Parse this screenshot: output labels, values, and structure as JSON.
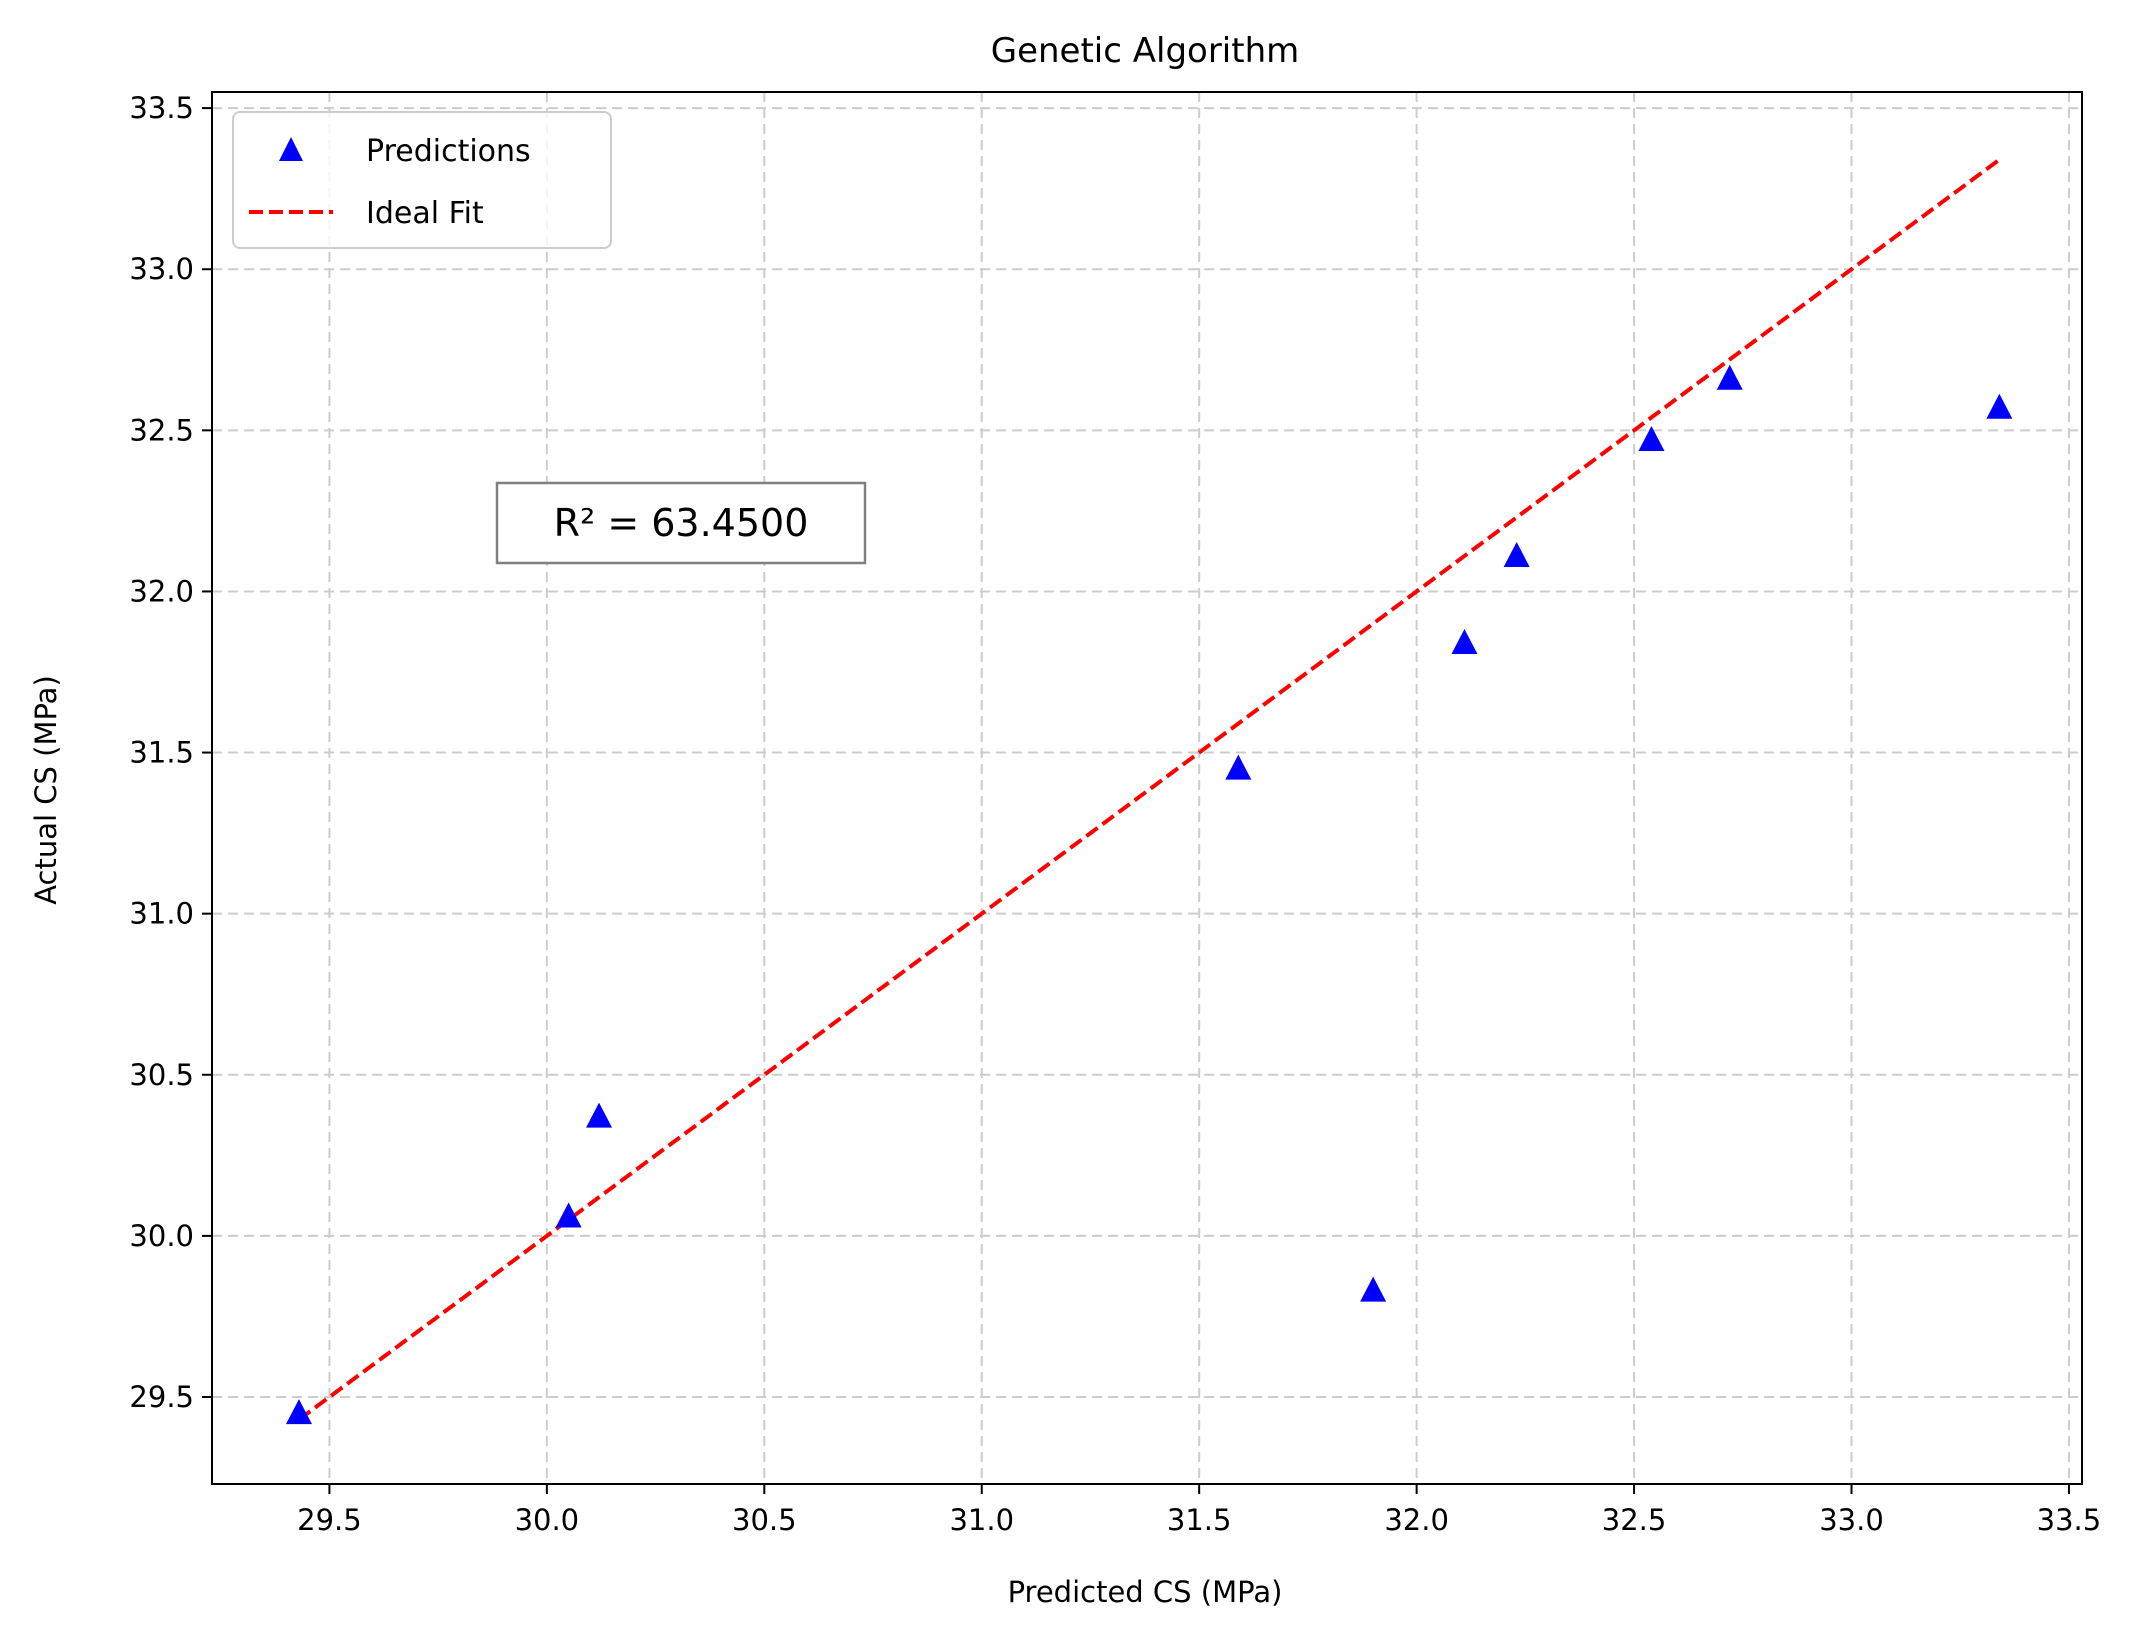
{
  "chart_data": {
    "type": "scatter",
    "title": "Genetic Algorithm",
    "xlabel": "Predicted CS (MPa)",
    "ylabel": "Actual CS (MPa)",
    "xlim": [
      29.23,
      33.53
    ],
    "ylim": [
      29.23,
      33.55
    ],
    "xticks": [
      29.5,
      30.0,
      30.5,
      31.0,
      31.5,
      32.0,
      32.5,
      33.0,
      33.5
    ],
    "yticks": [
      29.5,
      30.0,
      30.5,
      31.0,
      31.5,
      32.0,
      32.5,
      33.0,
      33.5
    ],
    "xtick_labels": [
      "29.5",
      "30.0",
      "30.5",
      "31.0",
      "31.5",
      "32.0",
      "32.5",
      "33.0",
      "33.5"
    ],
    "ytick_labels": [
      "29.5",
      "30.0",
      "30.5",
      "31.0",
      "31.5",
      "32.0",
      "32.5",
      "33.0",
      "33.5"
    ],
    "grid": true,
    "legend_position": "top-left",
    "annotation": "R² = 63.4500",
    "series": [
      {
        "name": "Predictions",
        "kind": "scatter",
        "marker": "triangle",
        "color": "#0000ff",
        "points": [
          {
            "x": 29.43,
            "y": 29.45
          },
          {
            "x": 30.05,
            "y": 30.06
          },
          {
            "x": 30.12,
            "y": 30.37
          },
          {
            "x": 31.59,
            "y": 31.45
          },
          {
            "x": 31.9,
            "y": 29.83
          },
          {
            "x": 32.11,
            "y": 31.84
          },
          {
            "x": 32.23,
            "y": 32.11
          },
          {
            "x": 32.54,
            "y": 32.47
          },
          {
            "x": 32.72,
            "y": 32.66
          },
          {
            "x": 33.34,
            "y": 32.57
          }
        ]
      },
      {
        "name": "Ideal Fit",
        "kind": "line",
        "style": "dashed",
        "color": "#ff0000",
        "points": [
          {
            "x": 29.43,
            "y": 29.43
          },
          {
            "x": 33.34,
            "y": 33.34
          }
        ]
      }
    ]
  }
}
